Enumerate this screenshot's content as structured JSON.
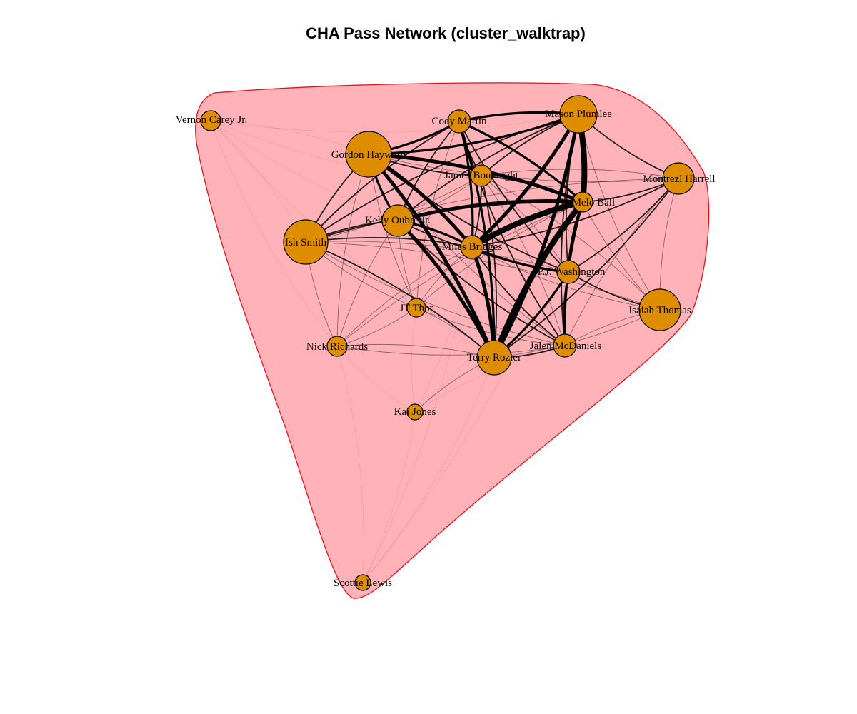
{
  "title": "CHA Pass Network (cluster_walktrap)",
  "colors": {
    "node_fill": "#DE8C00",
    "node_stroke": "#000000",
    "cluster_fill": "#FFB3B8",
    "cluster_stroke": "#E8101C",
    "edge": "#000000"
  },
  "nodes": [
    {
      "id": "vernon_carey",
      "label": "Vernon Carey Jr."
    },
    {
      "id": "cody_martin",
      "label": "Cody Martin"
    },
    {
      "id": "mason_plumlee",
      "label": "Mason Plumlee"
    },
    {
      "id": "gordon_hayward",
      "label": "Gordon Hayward"
    },
    {
      "id": "james_bouknight",
      "label": "James Bouknight"
    },
    {
      "id": "montrezl_harrell",
      "label": "Montrezl Harrell"
    },
    {
      "id": "lamelo_ball",
      "label": "LaMelo Ball"
    },
    {
      "id": "kelly_oubre",
      "label": "Kelly Oubre Jr."
    },
    {
      "id": "ish_smith",
      "label": "Ish Smith"
    },
    {
      "id": "miles_bridges",
      "label": "Miles Bridges"
    },
    {
      "id": "pj_washington",
      "label": "P.J. Washington"
    },
    {
      "id": "jt_thor",
      "label": "JT Thor"
    },
    {
      "id": "isaiah_thomas",
      "label": "Isaiah Thomas"
    },
    {
      "id": "nick_richards",
      "label": "Nick Richards"
    },
    {
      "id": "jalen_mcdaniels",
      "label": "Jalen McDaniels"
    },
    {
      "id": "terry_rozier",
      "label": "Terry Rozier"
    },
    {
      "id": "kai_jones",
      "label": "Kai Jones"
    },
    {
      "id": "scottie_lewis",
      "label": "Scottie Lewis"
    }
  ],
  "edges": [
    [
      "lamelo_ball",
      "miles_bridges",
      5
    ],
    [
      "lamelo_ball",
      "terry_rozier",
      5
    ],
    [
      "lamelo_ball",
      "mason_plumlee",
      5
    ],
    [
      "lamelo_ball",
      "kelly_oubre",
      4
    ],
    [
      "lamelo_ball",
      "gordon_hayward",
      4
    ],
    [
      "lamelo_ball",
      "cody_martin",
      3
    ],
    [
      "lamelo_ball",
      "pj_washington",
      3
    ],
    [
      "lamelo_ball",
      "jalen_mcdaniels",
      3
    ],
    [
      "lamelo_ball",
      "james_bouknight",
      2
    ],
    [
      "lamelo_ball",
      "montrezl_harrell",
      2
    ],
    [
      "lamelo_ball",
      "ish_smith",
      2
    ],
    [
      "lamelo_ball",
      "isaiah_thomas",
      1
    ],
    [
      "lamelo_ball",
      "jt_thor",
      1
    ],
    [
      "lamelo_ball",
      "nick_richards",
      1
    ],
    [
      "terry_rozier",
      "miles_bridges",
      4
    ],
    [
      "terry_rozier",
      "gordon_hayward",
      4
    ],
    [
      "terry_rozier",
      "kelly_oubre",
      4
    ],
    [
      "terry_rozier",
      "mason_plumlee",
      4
    ],
    [
      "terry_rozier",
      "cody_martin",
      3
    ],
    [
      "terry_rozier",
      "pj_washington",
      3
    ],
    [
      "terry_rozier",
      "jalen_mcdaniels",
      2
    ],
    [
      "terry_rozier",
      "ish_smith",
      2
    ],
    [
      "terry_rozier",
      "james_bouknight",
      2
    ],
    [
      "terry_rozier",
      "montrezl_harrell",
      2
    ],
    [
      "terry_rozier",
      "isaiah_thomas",
      1
    ],
    [
      "terry_rozier",
      "nick_richards",
      1
    ],
    [
      "terry_rozier",
      "jt_thor",
      1
    ],
    [
      "terry_rozier",
      "kai_jones",
      1
    ],
    [
      "miles_bridges",
      "gordon_hayward",
      4
    ],
    [
      "miles_bridges",
      "mason_plumlee",
      4
    ],
    [
      "miles_bridges",
      "kelly_oubre",
      3
    ],
    [
      "miles_bridges",
      "cody_martin",
      3
    ],
    [
      "miles_bridges",
      "pj_washington",
      3
    ],
    [
      "miles_bridges",
      "ish_smith",
      2
    ],
    [
      "miles_bridges",
      "james_bouknight",
      2
    ],
    [
      "miles_bridges",
      "jalen_mcdaniels",
      2
    ],
    [
      "miles_bridges",
      "montrezl_harrell",
      2
    ],
    [
      "miles_bridges",
      "isaiah_thomas",
      1
    ],
    [
      "miles_bridges",
      "jt_thor",
      1
    ],
    [
      "miles_bridges",
      "nick_richards",
      1
    ],
    [
      "gordon_hayward",
      "mason_plumlee",
      3
    ],
    [
      "gordon_hayward",
      "cody_martin",
      3
    ],
    [
      "gordon_hayward",
      "kelly_oubre",
      3
    ],
    [
      "gordon_hayward",
      "ish_smith",
      2
    ],
    [
      "gordon_hayward",
      "james_bouknight",
      2
    ],
    [
      "gordon_hayward",
      "pj_washington",
      2
    ],
    [
      "gordon_hayward",
      "montrezl_harrell",
      1
    ],
    [
      "gordon_hayward",
      "nick_richards",
      1
    ],
    [
      "gordon_hayward",
      "jt_thor",
      1
    ],
    [
      "gordon_hayward",
      "jalen_mcdaniels",
      1
    ],
    [
      "gordon_hayward",
      "vernon_carey",
      0
    ],
    [
      "mason_plumlee",
      "cody_martin",
      3
    ],
    [
      "mason_plumlee",
      "pj_washington",
      2
    ],
    [
      "mason_plumlee",
      "kelly_oubre",
      2
    ],
    [
      "mason_plumlee",
      "montrezl_harrell",
      2
    ],
    [
      "mason_plumlee",
      "jalen_mcdaniels",
      2
    ],
    [
      "mason_plumlee",
      "ish_smith",
      2
    ],
    [
      "mason_plumlee",
      "james_bouknight",
      2
    ],
    [
      "mason_plumlee",
      "isaiah_thomas",
      1
    ],
    [
      "cody_martin",
      "kelly_oubre",
      2
    ],
    [
      "cody_martin",
      "pj_washington",
      2
    ],
    [
      "cody_martin",
      "ish_smith",
      2
    ],
    [
      "cody_martin",
      "james_bouknight",
      2
    ],
    [
      "cody_martin",
      "jalen_mcdaniels",
      2
    ],
    [
      "cody_martin",
      "jt_thor",
      1
    ],
    [
      "kelly_oubre",
      "pj_washington",
      2
    ],
    [
      "kelly_oubre",
      "ish_smith",
      2
    ],
    [
      "kelly_oubre",
      "jalen_mcdaniels",
      2
    ],
    [
      "kelly_oubre",
      "james_bouknight",
      1
    ],
    [
      "kelly_oubre",
      "jt_thor",
      1
    ],
    [
      "kelly_oubre",
      "nick_richards",
      1
    ],
    [
      "pj_washington",
      "jalen_mcdaniels",
      2
    ],
    [
      "pj_washington",
      "montrezl_harrell",
      2
    ],
    [
      "pj_washington",
      "isaiah_thomas",
      2
    ],
    [
      "pj_washington",
      "ish_smith",
      1
    ],
    [
      "pj_washington",
      "james_bouknight",
      1
    ],
    [
      "montrezl_harrell",
      "isaiah_thomas",
      1
    ],
    [
      "montrezl_harrell",
      "jalen_mcdaniels",
      1
    ],
    [
      "montrezl_harrell",
      "ish_smith",
      1
    ],
    [
      "montrezl_harrell",
      "james_bouknight",
      1
    ],
    [
      "isaiah_thomas",
      "jalen_mcdaniels",
      1
    ],
    [
      "isaiah_thomas",
      "ish_smith",
      1
    ],
    [
      "isaiah_thomas",
      "james_bouknight",
      1
    ],
    [
      "ish_smith",
      "nick_richards",
      1
    ],
    [
      "ish_smith",
      "jt_thor",
      1
    ],
    [
      "ish_smith",
      "james_bouknight",
      1
    ],
    [
      "ish_smith",
      "jalen_mcdaniels",
      1
    ],
    [
      "ish_smith",
      "vernon_carey",
      0
    ],
    [
      "nick_richards",
      "jt_thor",
      1
    ],
    [
      "nick_richards",
      "jalen_mcdaniels",
      1
    ],
    [
      "nick_richards",
      "kai_jones",
      0
    ],
    [
      "jt_thor",
      "jalen_mcdaniels",
      1
    ],
    [
      "jt_thor",
      "kai_jones",
      0
    ],
    [
      "jalen_mcdaniels",
      "james_bouknight",
      1
    ],
    [
      "jalen_mcdaniels",
      "kai_jones",
      0
    ],
    [
      "kai_jones",
      "miles_bridges",
      0
    ],
    [
      "kai_jones",
      "lamelo_ball",
      0
    ],
    [
      "scottie_lewis",
      "terry_rozier",
      0
    ],
    [
      "scottie_lewis",
      "kai_jones",
      0
    ],
    [
      "scottie_lewis",
      "nick_richards",
      0
    ],
    [
      "scottie_lewis",
      "lamelo_ball",
      0
    ],
    [
      "scottie_lewis",
      "miles_bridges",
      0
    ],
    [
      "vernon_carey",
      "lamelo_ball",
      0
    ],
    [
      "vernon_carey",
      "miles_bridges",
      0
    ],
    [
      "vernon_carey",
      "mason_plumlee",
      0
    ],
    [
      "vernon_carey",
      "terry_rozier",
      0
    ],
    [
      "vernon_carey",
      "nick_richards",
      0
    ]
  ]
}
